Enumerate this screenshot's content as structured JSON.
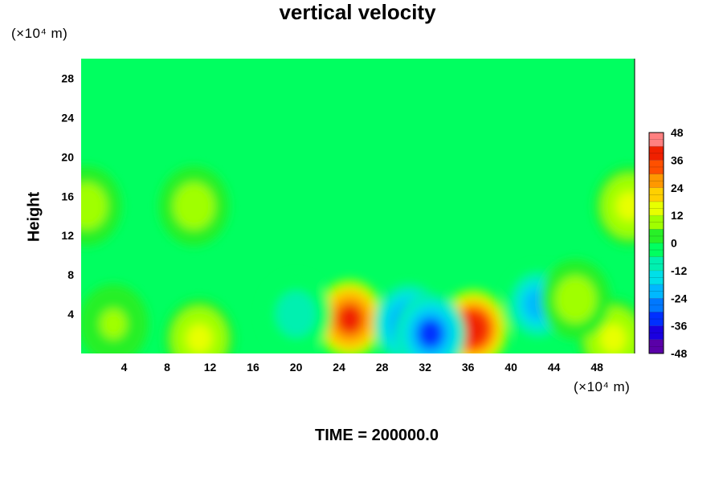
{
  "chart_data": {
    "type": "heatmap",
    "title": "vertical velocity",
    "xlabel": "",
    "ylabel": "Height",
    "x_unit": "(×10⁴ m)",
    "y_unit": "(×10⁴ m)",
    "footer": "TIME = 200000.0",
    "xlim": [
      0,
      51.5
    ],
    "ylim": [
      0,
      30
    ],
    "x_ticks": [
      4,
      8,
      12,
      16,
      20,
      24,
      28,
      32,
      36,
      40,
      44,
      48
    ],
    "y_ticks": [
      4,
      8,
      12,
      16,
      20,
      24,
      28
    ],
    "colorbar": {
      "min": -48,
      "max": 48,
      "tick_values": [
        48,
        36,
        24,
        12,
        0,
        -12,
        -24,
        -36,
        -48
      ],
      "colors": [
        "#5a00a8",
        "#1a00e0",
        "#0030ff",
        "#0078ff",
        "#00b8ff",
        "#00e0e8",
        "#00f0b0",
        "#00ff60",
        "#28f028",
        "#a0ff00",
        "#e8ff00",
        "#ffd000",
        "#ff9800",
        "#ff5000",
        "#f02000",
        "#ff8080"
      ]
    },
    "features": [
      {
        "x": 25,
        "y": 3.5,
        "value": 36
      },
      {
        "x": 36.5,
        "y": 2.5,
        "value": 40
      },
      {
        "x": 30.5,
        "y": 3.0,
        "value": -30
      },
      {
        "x": 32.5,
        "y": 2.0,
        "value": -32
      },
      {
        "x": 42.5,
        "y": 5.0,
        "value": -22
      },
      {
        "x": 11,
        "y": 1.5,
        "value": 14
      },
      {
        "x": 49.5,
        "y": 1.5,
        "value": 12
      },
      {
        "x": 51,
        "y": 15,
        "value": 12
      },
      {
        "x": 0.5,
        "y": 15,
        "value": 10
      },
      {
        "x": 10.5,
        "y": 15,
        "value": 8
      },
      {
        "x": 20,
        "y": 4,
        "value": -10
      },
      {
        "x": 46,
        "y": 5.5,
        "value": 10
      },
      {
        "x": 3,
        "y": 3,
        "value": 6
      }
    ],
    "background_value": -2
  }
}
